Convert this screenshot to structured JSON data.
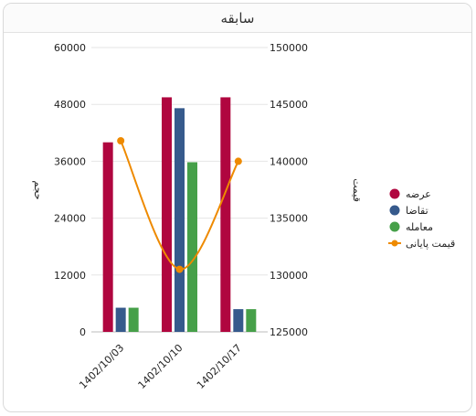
{
  "panel": {
    "title": "سابقه"
  },
  "chart_data": {
    "type": "bar",
    "categories": [
      "1402/10/03",
      "1402/10/10",
      "1402/10/17"
    ],
    "series": [
      {
        "name": "عرضه",
        "axis": "left",
        "kind": "bar",
        "color": "#b0063f",
        "values": [
          40000,
          49500,
          49500
        ]
      },
      {
        "name": "تقاضا",
        "axis": "left",
        "kind": "bar",
        "color": "#365a8c",
        "values": [
          5100,
          47200,
          4800
        ]
      },
      {
        "name": "معامله",
        "axis": "left",
        "kind": "bar",
        "color": "#46a049",
        "values": [
          5100,
          35800,
          4800
        ]
      },
      {
        "name": "قیمت پایانی",
        "axis": "right",
        "kind": "line",
        "color": "#ee8a00",
        "values": [
          141800,
          130500,
          140000
        ]
      }
    ],
    "ylabel_left": "حجم",
    "ylabel_right": "قیمت",
    "ylim_left": [
      0,
      60000
    ],
    "ylim_right": [
      125000,
      150000
    ],
    "yticks_left": [
      "0",
      "12000",
      "24000",
      "36000",
      "48000",
      "60000"
    ],
    "yticks_right": [
      "125000",
      "130000",
      "135000",
      "140000",
      "145000",
      "150000"
    ],
    "grid": true,
    "legend_position": "right"
  }
}
